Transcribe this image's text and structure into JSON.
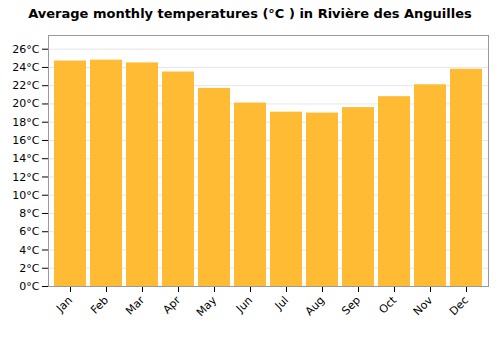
{
  "chart_data": {
    "type": "bar",
    "title": "Average monthly temperatures (°C ) in Rivière des Anguilles",
    "categories": [
      "Jan",
      "Feb",
      "Mar",
      "Apr",
      "May",
      "Jun",
      "Jul",
      "Aug",
      "Sep",
      "Oct",
      "Nov",
      "Dec"
    ],
    "values": [
      24.7,
      24.8,
      24.5,
      23.5,
      21.7,
      20.1,
      19.1,
      19.0,
      19.6,
      20.8,
      22.1,
      23.8
    ],
    "color": "#FFBB33",
    "ylim": [
      0,
      27.5
    ],
    "yticks": [
      {
        "value": 0,
        "label": "0°C"
      },
      {
        "value": 2,
        "label": "2°C"
      },
      {
        "value": 4,
        "label": "4°C"
      },
      {
        "value": 6,
        "label": "6°C"
      },
      {
        "value": 8,
        "label": "8°C"
      },
      {
        "value": 10,
        "label": "10°C"
      },
      {
        "value": 12,
        "label": "12°C"
      },
      {
        "value": 14,
        "label": "14°C"
      },
      {
        "value": 16,
        "label": "16°C"
      },
      {
        "value": 18,
        "label": "18°C"
      },
      {
        "value": 20,
        "label": "20°C"
      },
      {
        "value": 22,
        "label": "22°C"
      },
      {
        "value": 24,
        "label": "24°C"
      },
      {
        "value": 26,
        "label": "26°C"
      }
    ],
    "grid": true
  }
}
